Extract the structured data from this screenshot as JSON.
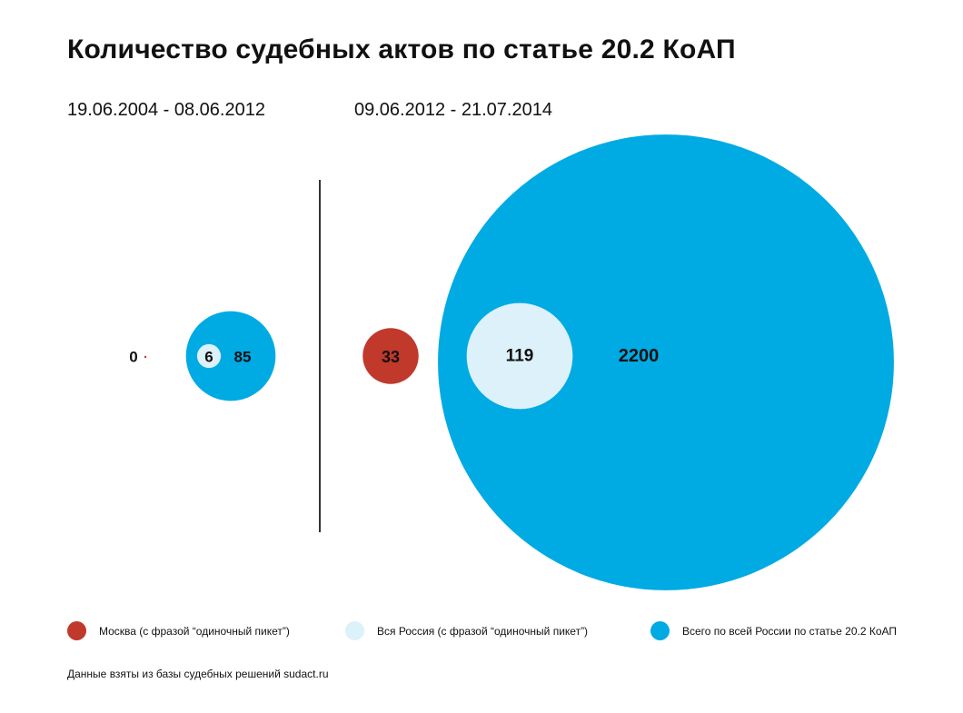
{
  "title": "Количество судебных актов по статье 20.2 КоАП",
  "chart_data": {
    "type": "bubble",
    "title": "Количество судебных актов по статье 20.2 КоАП",
    "periods": [
      {
        "label": "19.06.2004 - 08.06.2012",
        "values": [
          {
            "series": "moscow",
            "value": 0
          },
          {
            "series": "russia_picket",
            "value": 6
          },
          {
            "series": "russia_total",
            "value": 85
          }
        ]
      },
      {
        "label": "09.06.2012 - 21.07.2014",
        "values": [
          {
            "series": "moscow",
            "value": 33
          },
          {
            "series": "russia_picket",
            "value": 119
          },
          {
            "series": "russia_total",
            "value": 2200
          }
        ]
      }
    ],
    "series": [
      {
        "id": "moscow",
        "name": "Москва (с фразой “одиночный пикет”)",
        "color": "#c0392b"
      },
      {
        "id": "russia_picket",
        "name": "Вся Россия (с фразой “одиночный пикет”)",
        "color": "#dcf1f9"
      },
      {
        "id": "russia_total",
        "name": "Всего по всей России по статье 20.2 КоАП",
        "color": "#00aae3"
      }
    ]
  },
  "legend": {
    "moscow": "Москва (с фразой “одиночный пикет”)",
    "russia_picket": "Вся Россия (с фразой “одиночный пикет”)",
    "russia_total": "Всего по всей России по статье 20.2 КоАП"
  },
  "source": "Данные взяты из базы судебных решений sudact.ru",
  "colors": {
    "moscow": "#c0392b",
    "russia_picket": "#dcf1f9",
    "russia_total": "#00aae3",
    "text": "#111111",
    "divider": "#333333"
  }
}
